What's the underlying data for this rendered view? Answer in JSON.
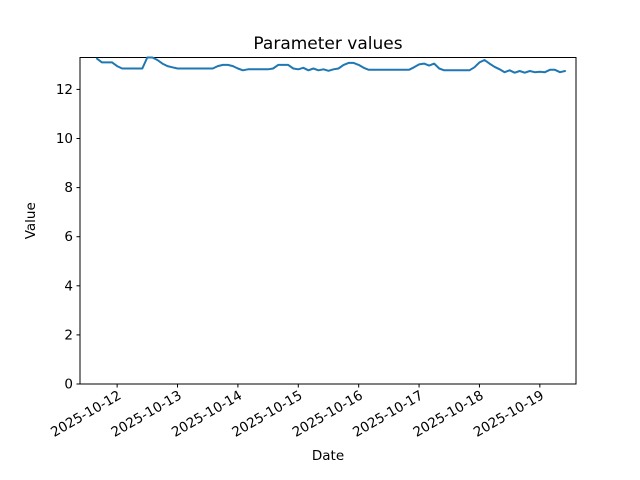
{
  "figure": {
    "title": "Parameter values",
    "xlabel": "Date",
    "ylabel": "Value"
  },
  "chart_data": {
    "type": "line",
    "title": "Parameter values",
    "xlabel": "Date",
    "ylabel": "Value",
    "grid": false,
    "legend": false,
    "line_color": "#1f77b4",
    "background_color": "#ffffff",
    "ylim": [
      0,
      13.3
    ],
    "yticks": [
      0,
      2,
      4,
      6,
      8,
      10,
      12
    ],
    "x_tick_labels": [
      "2025-10-12",
      "2025-10-13",
      "2025-10-14",
      "2025-10-15",
      "2025-10-16",
      "2025-10-17",
      "2025-10-18",
      "2025-10-19"
    ],
    "x_tick_rotation_deg": 30,
    "x": [
      "2025-10-11T16:00",
      "2025-10-11T18:00",
      "2025-10-11T20:00",
      "2025-10-11T22:00",
      "2025-10-12T00:00",
      "2025-10-12T02:00",
      "2025-10-12T04:00",
      "2025-10-12T06:00",
      "2025-10-12T08:00",
      "2025-10-12T10:00",
      "2025-10-12T12:00",
      "2025-10-12T14:00",
      "2025-10-12T16:00",
      "2025-10-12T18:00",
      "2025-10-12T20:00",
      "2025-10-12T22:00",
      "2025-10-13T00:00",
      "2025-10-13T02:00",
      "2025-10-13T04:00",
      "2025-10-13T06:00",
      "2025-10-13T08:00",
      "2025-10-13T10:00",
      "2025-10-13T12:00",
      "2025-10-13T14:00",
      "2025-10-13T16:00",
      "2025-10-13T18:00",
      "2025-10-13T20:00",
      "2025-10-13T22:00",
      "2025-10-14T00:00",
      "2025-10-14T02:00",
      "2025-10-14T04:00",
      "2025-10-14T06:00",
      "2025-10-14T08:00",
      "2025-10-14T10:00",
      "2025-10-14T12:00",
      "2025-10-14T14:00",
      "2025-10-14T16:00",
      "2025-10-14T18:00",
      "2025-10-14T20:00",
      "2025-10-14T22:00",
      "2025-10-15T00:00",
      "2025-10-15T02:00",
      "2025-10-15T04:00",
      "2025-10-15T06:00",
      "2025-10-15T08:00",
      "2025-10-15T10:00",
      "2025-10-15T12:00",
      "2025-10-15T14:00",
      "2025-10-15T16:00",
      "2025-10-15T18:00",
      "2025-10-15T20:00",
      "2025-10-15T22:00",
      "2025-10-16T00:00",
      "2025-10-16T02:00",
      "2025-10-16T04:00",
      "2025-10-16T06:00",
      "2025-10-16T08:00",
      "2025-10-16T10:00",
      "2025-10-16T12:00",
      "2025-10-16T14:00",
      "2025-10-16T16:00",
      "2025-10-16T18:00",
      "2025-10-16T20:00",
      "2025-10-16T22:00",
      "2025-10-17T00:00",
      "2025-10-17T02:00",
      "2025-10-17T04:00",
      "2025-10-17T06:00",
      "2025-10-17T08:00",
      "2025-10-17T10:00",
      "2025-10-17T12:00",
      "2025-10-17T14:00",
      "2025-10-17T16:00",
      "2025-10-17T18:00",
      "2025-10-17T20:00",
      "2025-10-17T22:00",
      "2025-10-18T00:00",
      "2025-10-18T02:00",
      "2025-10-18T04:00",
      "2025-10-18T06:00",
      "2025-10-18T08:00",
      "2025-10-18T10:00",
      "2025-10-18T12:00",
      "2025-10-18T14:00",
      "2025-10-18T16:00",
      "2025-10-18T18:00",
      "2025-10-18T20:00",
      "2025-10-18T22:00",
      "2025-10-19T00:00",
      "2025-10-19T02:00",
      "2025-10-19T04:00",
      "2025-10-19T06:00",
      "2025-10-19T08:00",
      "2025-10-19T10:00"
    ],
    "values": [
      13.25,
      13.1,
      13.1,
      13.1,
      12.95,
      12.85,
      12.85,
      12.85,
      12.85,
      12.85,
      13.3,
      13.3,
      13.2,
      13.05,
      12.95,
      12.9,
      12.85,
      12.85,
      12.85,
      12.85,
      12.85,
      12.85,
      12.85,
      12.85,
      12.95,
      13.0,
      13.0,
      12.95,
      12.85,
      12.78,
      12.82,
      12.82,
      12.82,
      12.82,
      12.82,
      12.85,
      13.0,
      13.0,
      13.0,
      12.85,
      12.82,
      12.88,
      12.78,
      12.85,
      12.78,
      12.82,
      12.76,
      12.82,
      12.85,
      13.0,
      13.08,
      13.08,
      13.0,
      12.88,
      12.8,
      12.8,
      12.8,
      12.8,
      12.8,
      12.8,
      12.8,
      12.8,
      12.8,
      12.9,
      13.02,
      13.05,
      12.97,
      13.05,
      12.85,
      12.78,
      12.78,
      12.78,
      12.78,
      12.78,
      12.78,
      12.9,
      13.1,
      13.2,
      13.05,
      12.92,
      12.82,
      12.7,
      12.78,
      12.68,
      12.75,
      12.68,
      12.75,
      12.7,
      12.72,
      12.7,
      12.8,
      12.8,
      12.7,
      12.75
    ]
  }
}
